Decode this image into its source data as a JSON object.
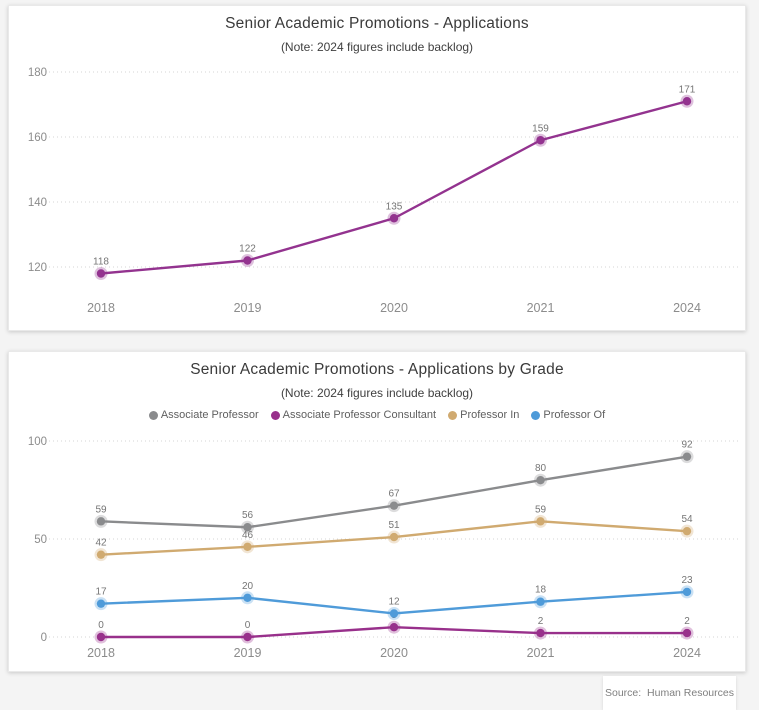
{
  "page_background": "#f4f4f4",
  "charts": [
    {
      "title": "Senior Academic Promotions - Applications",
      "subtitle": "(Note: 2024 figures include backlog)",
      "chart_data": {
        "type": "line",
        "categories": [
          "2018",
          "2019",
          "2020",
          "2021",
          "2024"
        ],
        "series": [
          {
            "name": "Applications",
            "color": "#93338f",
            "values": [
              118,
              122,
              135,
              159,
              171
            ]
          }
        ],
        "yticks": [
          120,
          140,
          160,
          180
        ],
        "ylim": [
          110,
          184
        ],
        "grid": "horizontal-dotted",
        "legend": "none",
        "data_labels": true,
        "data_label_color": "#757575",
        "axis_label_color": "#8c8c8c"
      }
    },
    {
      "title": "Senior Academic Promotions - Applications by Grade",
      "subtitle": "(Note: 2024 figures include backlog)",
      "chart_data": {
        "type": "line",
        "categories": [
          "2018",
          "2019",
          "2020",
          "2021",
          "2024"
        ],
        "series": [
          {
            "name": "Associate Professor",
            "color": "#8a8b8d",
            "values": [
              59,
              56,
              67,
              80,
              92
            ]
          },
          {
            "name": "Associate Professor Consultant",
            "color": "#98308b",
            "values": [
              0,
              0,
              5,
              2,
              2
            ]
          },
          {
            "name": "Professor In",
            "color": "#d0aa70",
            "values": [
              42,
              46,
              51,
              59,
              54
            ]
          },
          {
            "name": "Professor Of",
            "color": "#4f9bd9",
            "values": [
              17,
              20,
              12,
              18,
              23
            ]
          }
        ],
        "z_order": [
          0,
          2,
          1,
          3
        ],
        "yticks": [
          0,
          50,
          100
        ],
        "ylim": [
          0,
          100
        ],
        "grid": "horizontal-dotted",
        "legend": "top-center",
        "data_labels": true,
        "data_label_color": "#757575",
        "axis_label_color": "#8c8c8c"
      }
    }
  ],
  "source_note": "Source:  Human Resources",
  "style_colors": {
    "gridline": "#d6d6d6",
    "title_text": "#3a3a3a"
  }
}
